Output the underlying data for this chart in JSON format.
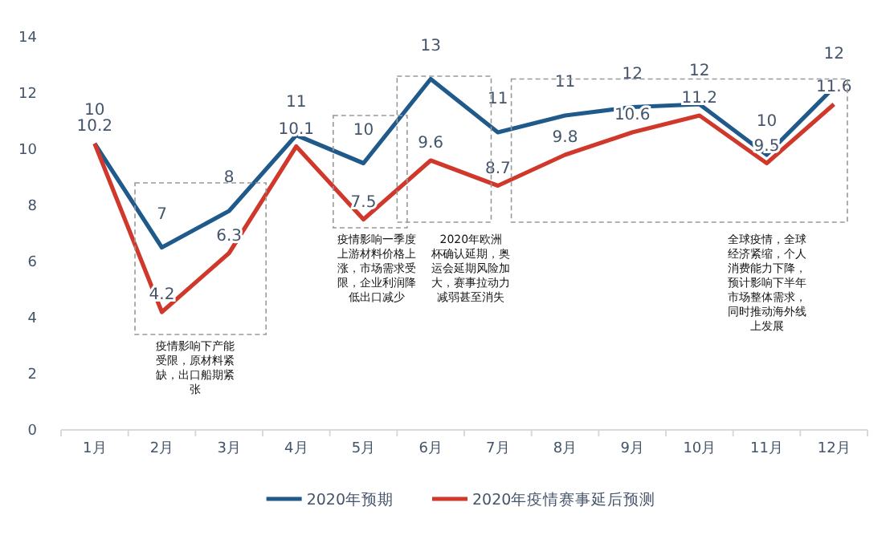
{
  "chart_data": {
    "type": "line",
    "categories": [
      "1月",
      "2月",
      "3月",
      "4月",
      "5月",
      "6月",
      "7月",
      "8月",
      "9月",
      "10月",
      "11月",
      "12月"
    ],
    "ylim": [
      0,
      14
    ],
    "yticks": [
      0,
      2,
      4,
      6,
      8,
      10,
      12,
      14
    ],
    "grid": false,
    "legend": "bottom",
    "marker": "none",
    "series": [
      {
        "name": "2020年预期",
        "color": "#1f5a8a",
        "values": [
          10.2,
          6.5,
          7.8,
          10.5,
          9.5,
          12.5,
          10.6,
          11.2,
          11.5,
          11.6,
          9.8,
          12.2
        ],
        "value_labels": [
          "10",
          "7",
          "8",
          "11",
          "10",
          "13",
          "11",
          "11",
          "12",
          "12",
          "10",
          "12"
        ]
      },
      {
        "name": "2020年疫情赛事延后预测",
        "color": "#d0382b",
        "values": [
          10.2,
          4.2,
          6.3,
          10.1,
          7.5,
          9.6,
          8.7,
          9.8,
          10.6,
          11.2,
          9.5,
          11.6
        ],
        "value_labels": [
          "10.2",
          "4.2",
          "6.3",
          "10.1",
          "7.5",
          "9.6",
          "8.7",
          "9.8",
          "10.6",
          "11.2",
          "9.5",
          "11.6"
        ]
      }
    ],
    "annotations": [
      "疫情影响下产能受限，原材料紧缺，出口船期紧张",
      "疫情影响一季度上游材料价格上涨，市场需求受限，企业利润降低出口减少",
      "2020年欧洲杯确认延期，奥运会延期风险加大，赛事拉动力减弱甚至消失",
      "全球疫情，全球经济紧缩，个人消费能力下降，预计影响下半年市场整体需求，同时推动海外线上发展"
    ]
  }
}
